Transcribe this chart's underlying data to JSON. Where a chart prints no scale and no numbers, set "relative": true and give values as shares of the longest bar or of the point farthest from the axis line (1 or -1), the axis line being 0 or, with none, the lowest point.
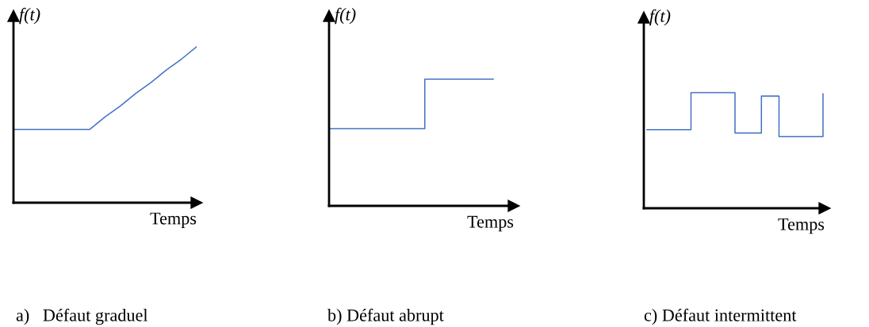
{
  "chart_data": [
    {
      "type": "line",
      "relative": true,
      "title": "a)   Défaut graduel",
      "xlabel": "Temps",
      "ylabel": "f(t)",
      "grid": false,
      "categories": [
        null,
        null,
        null,
        null,
        null,
        null,
        null,
        null,
        null,
        null,
        null,
        null,
        null
      ],
      "series": [
        {
          "color": "#4472c4",
          "values": [
            0.47,
            0.47,
            0.47,
            0.47,
            0.47,
            0.47,
            0.55,
            0.62,
            0.7,
            0.77,
            0.85,
            0.92,
            1
          ]
        }
      ]
    },
    {
      "type": "step",
      "relative": true,
      "title": "b) Défaut abrupt",
      "xlabel": "Temps",
      "ylabel": "f(t)",
      "grid": false,
      "categories": [
        null,
        null,
        null,
        null,
        null,
        null,
        null,
        null,
        null,
        null,
        null,
        null,
        null
      ],
      "series": [
        {
          "color": "#4472c4",
          "values": [
            0.61,
            0.61,
            0.61,
            0.61,
            0.61,
            0.61,
            0.61,
            1,
            1,
            1,
            1,
            1,
            1
          ]
        }
      ]
    },
    {
      "type": "step",
      "relative": true,
      "title": "c) Défaut intermittent",
      "xlabel": "Temps",
      "ylabel": "f(t)",
      "grid": false,
      "categories": [
        null,
        null,
        null,
        null,
        null,
        null,
        null,
        null,
        null,
        null,
        null,
        null,
        null,
        null,
        null,
        null,
        null,
        null,
        null,
        null,
        null
      ],
      "series": [
        {
          "color": "#4472c4",
          "values": [
            0.68,
            0.68,
            0.68,
            0.68,
            0.68,
            1,
            1,
            1,
            1,
            1,
            0.65,
            0.65,
            0.65,
            0.97,
            0.97,
            0.62,
            0.62,
            0.62,
            0.62,
            0.62,
            0.99
          ]
        }
      ]
    }
  ]
}
